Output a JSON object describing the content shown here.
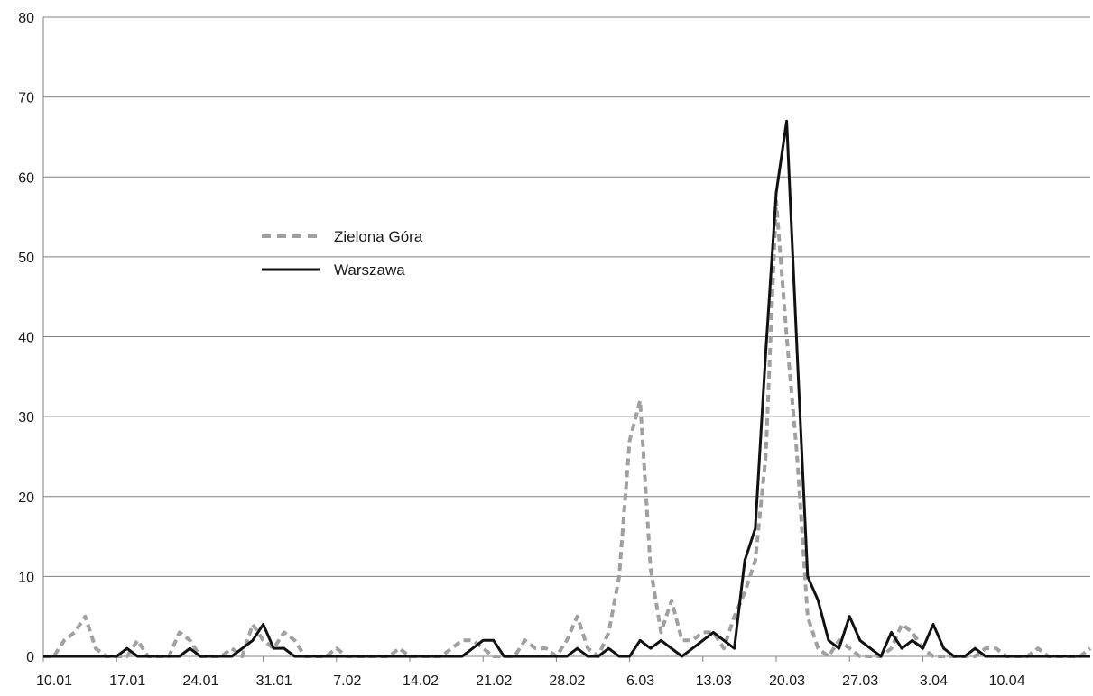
{
  "chart_data": {
    "type": "line",
    "title": "",
    "xlabel": "",
    "ylabel": "",
    "ylim": [
      0,
      80
    ],
    "y_ticks": [
      0,
      10,
      20,
      30,
      40,
      50,
      60,
      70,
      80
    ],
    "x_tick_labels": [
      "10.01",
      "17.01",
      "24.01",
      "31.01",
      "7.02",
      "14.02",
      "21.02",
      "28.02",
      "6.03",
      "13.03",
      "20.03",
      "27.03",
      "3.04",
      "10.04"
    ],
    "grid": "horizontal",
    "legend_position": "upper-left",
    "series": [
      {
        "name": "Zielona Góra",
        "style": "dashed",
        "color": "#a0a0a0",
        "values": [
          0,
          0,
          2,
          3,
          5,
          1,
          0,
          0,
          0,
          2,
          0,
          0,
          0,
          3,
          2,
          0,
          0,
          0,
          1,
          0,
          4,
          2,
          1,
          3,
          2,
          0,
          0,
          0,
          1,
          0,
          0,
          0,
          0,
          0,
          1,
          0,
          0,
          0,
          0,
          1,
          2,
          2,
          1,
          0,
          0,
          0,
          2,
          1,
          1,
          0,
          2,
          5,
          1,
          0,
          3,
          10,
          27,
          32,
          11,
          3,
          7,
          2,
          2,
          3,
          3,
          1,
          5,
          8,
          12,
          25,
          57,
          40,
          25,
          5,
          1,
          0,
          2,
          1,
          0,
          0,
          0,
          1,
          4,
          3,
          1,
          0,
          0,
          0,
          0,
          0,
          1,
          1,
          0,
          0,
          0,
          1,
          0,
          0,
          0,
          0,
          1
        ]
      },
      {
        "name": "Warszawa",
        "style": "solid",
        "color": "#111111",
        "values": [
          0,
          0,
          0,
          0,
          0,
          0,
          0,
          0,
          1,
          0,
          0,
          0,
          0,
          0,
          1,
          0,
          0,
          0,
          0,
          1,
          2,
          4,
          1,
          1,
          0,
          0,
          0,
          0,
          0,
          0,
          0,
          0,
          0,
          0,
          0,
          0,
          0,
          0,
          0,
          0,
          0,
          1,
          2,
          2,
          0,
          0,
          0,
          0,
          0,
          0,
          0,
          1,
          0,
          0,
          1,
          0,
          0,
          2,
          1,
          2,
          1,
          0,
          1,
          2,
          3,
          2,
          1,
          12,
          16,
          38,
          58,
          67,
          38,
          10,
          7,
          2,
          1,
          5,
          2,
          1,
          0,
          3,
          1,
          2,
          1,
          4,
          1,
          0,
          0,
          1,
          0,
          0,
          0,
          0,
          0,
          0,
          0,
          0,
          0,
          0,
          0
        ]
      }
    ]
  }
}
